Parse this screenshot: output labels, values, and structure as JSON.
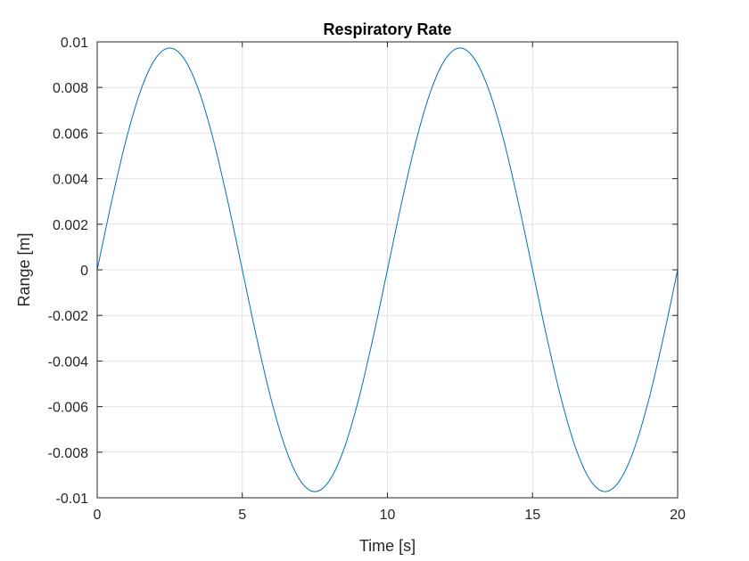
{
  "chart_data": {
    "type": "line",
    "title": "Respiratory Rate",
    "xlabel": "Time [s]",
    "ylabel": "Range [m]",
    "xlim": [
      0,
      20
    ],
    "ylim": [
      -0.01,
      0.01
    ],
    "xticks": [
      0,
      5,
      10,
      15,
      20
    ],
    "xtick_labels": [
      "0",
      "5",
      "10",
      "15",
      "20"
    ],
    "yticks": [
      -0.01,
      -0.008,
      -0.006,
      -0.004,
      -0.002,
      0,
      0.002,
      0.004,
      0.006,
      0.008,
      0.01
    ],
    "ytick_labels": [
      "-0.01",
      "-0.008",
      "-0.006",
      "-0.004",
      "-0.002",
      "0",
      "0.002",
      "0.004",
      "0.006",
      "0.008",
      "0.01"
    ],
    "grid": true,
    "line_color": "#0072BD",
    "series": [
      {
        "x": [
          0,
          0.5,
          1,
          1.5,
          2,
          2.5,
          3,
          3.5,
          4,
          4.5,
          5,
          5.5,
          6,
          6.5,
          7,
          7.5,
          8,
          8.5,
          9,
          9.5,
          10,
          10.5,
          11,
          11.5,
          12,
          12.5,
          13,
          13.5,
          14,
          14.5,
          15,
          15.5,
          16,
          16.5,
          17,
          17.5,
          18,
          18.5,
          19,
          19.5,
          20
        ],
        "values": [
          0,
          0.00301,
          0.00572,
          0.00787,
          0.00925,
          0.00973,
          0.00925,
          0.00787,
          0.00572,
          0.00301,
          0,
          -0.00301,
          -0.00572,
          -0.00787,
          -0.00925,
          -0.00973,
          -0.00925,
          -0.00787,
          -0.00572,
          -0.00301,
          0,
          0.00301,
          0.00572,
          0.00787,
          0.00925,
          0.00973,
          0.00925,
          0.00787,
          0.00572,
          0.00301,
          0,
          -0.00301,
          -0.00572,
          -0.00787,
          -0.00925,
          -0.00973,
          -0.00925,
          -0.00787,
          -0.00572,
          -0.00301,
          0
        ]
      }
    ]
  }
}
